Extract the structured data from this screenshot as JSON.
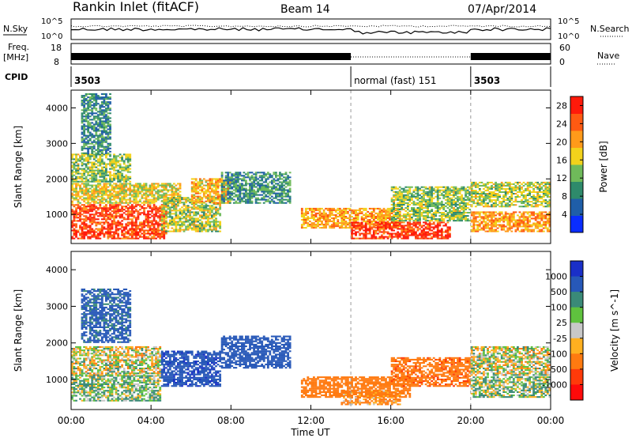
{
  "header": {
    "station": "Rankin Inlet (fitACF)",
    "beam": "Beam 14",
    "date": "07/Apr/2014"
  },
  "summary_panel": {
    "nsky_label": "N.Sky",
    "nsky_ticks": [
      "10^5",
      "10^0"
    ],
    "nsearch_label": "N.Search",
    "nsearch_ticks": [
      "10^5",
      "10^0"
    ],
    "freq_label": "Freq.",
    "freq_unit": "[MHz]",
    "freq_ticks": [
      "18",
      "8"
    ],
    "nave_label": "Nave",
    "nave_ticks": [
      "60",
      "0"
    ],
    "cpid_label": "CPID",
    "cpid_segments": [
      {
        "start_h": 0,
        "end_h": 14,
        "label": "3503"
      },
      {
        "start_h": 14,
        "end_h": 20,
        "label": "normal (fast) 151"
      },
      {
        "start_h": 20,
        "end_h": 24,
        "label": "3503"
      }
    ]
  },
  "colors": {
    "power_scale": [
      "#0a2dff",
      "#1f5ea8",
      "#2e8a6b",
      "#6fba5a",
      "#f2d21b",
      "#ff9a1a",
      "#ff5a12",
      "#ff1a0a"
    ],
    "velocity_scale": [
      "#1a2fc8",
      "#2758b8",
      "#3a8a78",
      "#5fc23e",
      "#c8c8c8",
      "#ffb020",
      "#ff7a10",
      "#ff3a0a",
      "#ff0a0a"
    ]
  },
  "chart_data": [
    {
      "type": "heatmap",
      "title": "Power",
      "xlabel": "Time UT",
      "ylabel": "Slant Range [km]",
      "x_ticks": [
        "00:00",
        "04:00",
        "08:00",
        "12:00",
        "16:00",
        "20:00",
        "00:00"
      ],
      "xlim_hours": [
        0,
        24
      ],
      "y_ticks": [
        1000,
        2000,
        3000,
        4000
      ],
      "ylim": [
        180,
        4500
      ],
      "colorbar_label": "Power [dB]",
      "colorbar_ticks": [
        4,
        8,
        12,
        16,
        20,
        24,
        28
      ],
      "clim": [
        0,
        30
      ],
      "mode_change_hours": [
        14,
        20
      ],
      "regions": [
        {
          "t0": 0.0,
          "t1": 4.8,
          "r0": 300,
          "r1": 1300,
          "value": 26
        },
        {
          "t0": 0.0,
          "t1": 5.5,
          "r0": 1300,
          "r1": 1900,
          "value": 17
        },
        {
          "t0": 0.0,
          "t1": 3.0,
          "r0": 1900,
          "r1": 2700,
          "value": 14
        },
        {
          "t0": 4.5,
          "t1": 7.5,
          "r0": 500,
          "r1": 1500,
          "value": 15
        },
        {
          "t0": 6.0,
          "t1": 8.0,
          "r0": 1300,
          "r1": 2000,
          "value": 19
        },
        {
          "t0": 7.5,
          "t1": 11.0,
          "r0": 1300,
          "r1": 2200,
          "value": 10
        },
        {
          "t0": 11.5,
          "t1": 16.5,
          "r0": 600,
          "r1": 1200,
          "value": 20
        },
        {
          "t0": 14.0,
          "t1": 19.0,
          "r0": 300,
          "r1": 800,
          "value": 27
        },
        {
          "t0": 16.0,
          "t1": 20.0,
          "r0": 800,
          "r1": 1800,
          "value": 14
        },
        {
          "t0": 20.0,
          "t1": 24.0,
          "r0": 1200,
          "r1": 1900,
          "value": 15
        },
        {
          "t0": 20.0,
          "t1": 24.0,
          "r0": 500,
          "r1": 1100,
          "value": 21
        },
        {
          "t0": 0.5,
          "t1": 2.0,
          "r0": 2700,
          "r1": 4400,
          "value": 9
        }
      ]
    },
    {
      "type": "heatmap",
      "title": "Velocity",
      "xlabel": "Time UT",
      "ylabel": "Slant Range [km]",
      "x_ticks": [
        "00:00",
        "04:00",
        "08:00",
        "12:00",
        "16:00",
        "20:00",
        "00:00"
      ],
      "xlim_hours": [
        0,
        24
      ],
      "y_ticks": [
        1000,
        2000,
        3000,
        4000
      ],
      "ylim": [
        180,
        4500
      ],
      "colorbar_label": "Velocity [m s^-1]",
      "colorbar_ticks": [
        "1000",
        "500",
        "100",
        "25",
        "-25",
        "-100",
        "-500",
        "-1000"
      ],
      "mode_change_hours": [
        14,
        20
      ],
      "regions": [
        {
          "t0": 0.0,
          "t1": 4.5,
          "r0": 400,
          "r1": 1100,
          "value": 80
        },
        {
          "t0": 0.0,
          "t1": 4.5,
          "r0": 1100,
          "r1": 1900,
          "value": 0
        },
        {
          "t0": 0.5,
          "t1": 3.0,
          "r0": 2000,
          "r1": 3500,
          "value": 600
        },
        {
          "t0": 4.5,
          "t1": 7.5,
          "r0": 800,
          "r1": 1800,
          "value": 900
        },
        {
          "t0": 7.5,
          "t1": 11.0,
          "r0": 1300,
          "r1": 2200,
          "value": 700
        },
        {
          "t0": 11.5,
          "t1": 17.0,
          "r0": 500,
          "r1": 1100,
          "value": -300
        },
        {
          "t0": 16.0,
          "t1": 20.0,
          "r0": 800,
          "r1": 1600,
          "value": -400
        },
        {
          "t0": 20.0,
          "t1": 24.0,
          "r0": 1100,
          "r1": 1900,
          "value": 0
        },
        {
          "t0": 20.0,
          "t1": 24.0,
          "r0": 500,
          "r1": 1100,
          "value": 60
        },
        {
          "t0": 13.5,
          "t1": 16.5,
          "r0": 300,
          "r1": 700,
          "value": -150
        }
      ]
    }
  ]
}
